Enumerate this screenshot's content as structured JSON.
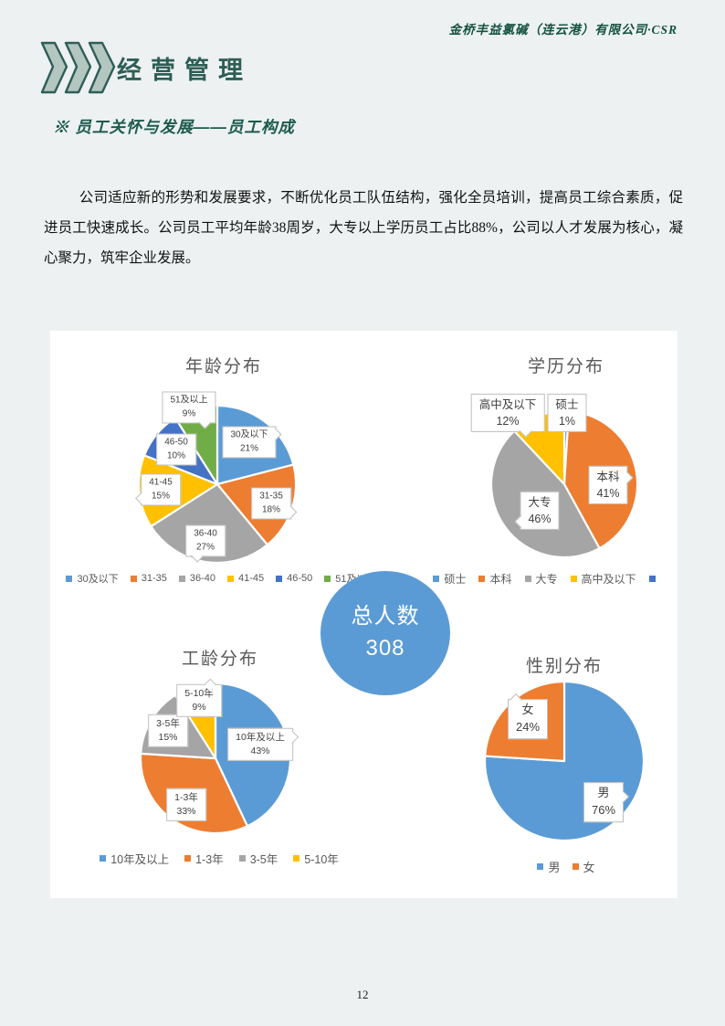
{
  "page": {
    "header_right": "金桥丰益氯碱（连云港）有限公司·CSR",
    "section_title": "经营管理",
    "subsection_heading": "※ 员工关怀与发展——员工构成",
    "paragraph": "公司适应新的形势和发展要求，不断优化员工队伍结构，强化全员培训，提高员工综合素质，促进员工快速成长。公司员工平均年龄38周岁，大专以上学历员工占比88%，公司以人才发展为核心，凝心聚力，筑牢企业发展。",
    "page_number": "12"
  },
  "colors": {
    "page_background": "#edf1f1",
    "teal_accent": "#2e5e56",
    "header_green": "#14523f",
    "chart_title_gray": "#595959",
    "series_blue": "#5b9bd5",
    "series_orange": "#ed7d31",
    "series_gray": "#a5a5a5",
    "series_yellow": "#ffc000",
    "series_dark_blue": "#4472c4",
    "series_green": "#70ad47"
  },
  "total_badge": {
    "label": "总人数",
    "value": "308"
  },
  "chart_data": [
    {
      "id": "age",
      "type": "pie",
      "title": "年龄分布",
      "unit": "%",
      "legend_position": "bottom",
      "categories": [
        "30及以下",
        "31-35",
        "36-40",
        "41-45",
        "46-50",
        "51及以上"
      ],
      "values": [
        21,
        18,
        27,
        15,
        10,
        9
      ],
      "colors": [
        "#5b9bd5",
        "#ed7d31",
        "#a5a5a5",
        "#ffc000",
        "#4472c4",
        "#70ad47"
      ]
    },
    {
      "id": "education",
      "type": "pie",
      "title": "学历分布",
      "unit": "%",
      "legend_position": "bottom",
      "categories": [
        "硕士",
        "本科",
        "大专",
        "高中及以下"
      ],
      "values": [
        1,
        41,
        46,
        12
      ],
      "colors": [
        "#5b9bd5",
        "#ed7d31",
        "#a5a5a5",
        "#ffc000"
      ],
      "legend_extra_marker_color": "#4472c4"
    },
    {
      "id": "tenure",
      "type": "pie",
      "title": "工龄分布",
      "unit": "%",
      "legend_position": "bottom",
      "categories": [
        "10年及以上",
        "1-3年",
        "3-5年",
        "5-10年"
      ],
      "values": [
        43,
        33,
        15,
        9
      ],
      "colors": [
        "#5b9bd5",
        "#ed7d31",
        "#a5a5a5",
        "#ffc000"
      ]
    },
    {
      "id": "gender",
      "type": "pie",
      "title": "性别分布",
      "unit": "%",
      "legend_position": "bottom",
      "categories": [
        "男",
        "女"
      ],
      "values": [
        76,
        24
      ],
      "colors": [
        "#5b9bd5",
        "#ed7d31"
      ]
    }
  ]
}
